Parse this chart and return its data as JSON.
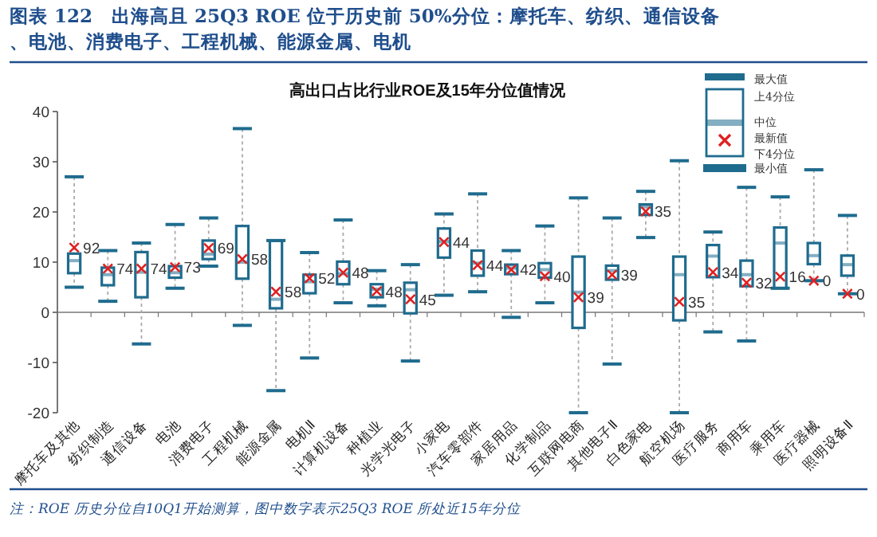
{
  "chart_data": {
    "type": "box",
    "title": "图表 122　出海高且 25Q3 ROE 位于历史前 50%分位：摩托车、纺织、通信设备、电池、消费电子、工程机械、能源金属、电机",
    "subtitle": "高出口占比行业ROE及15年分位值情况",
    "categories": [
      "摩托车及其他",
      "纺织制造",
      "通信设备",
      "电池",
      "消费电子",
      "工程机械",
      "能源金属",
      "电机Ⅱ",
      "计算机设备",
      "种植业",
      "光学光电子",
      "小家电",
      "汽车零部件",
      "家居用品",
      "化学制品",
      "互联网电商",
      "其他电子Ⅱ",
      "白色家电",
      "航空机场",
      "医疗服务",
      "商用车",
      "乘用车",
      "医疗器械",
      "照明设备Ⅱ"
    ],
    "ylim": [
      -20,
      40
    ],
    "yticks": [
      -20,
      -10,
      0,
      10,
      20,
      30,
      40
    ],
    "legend": "top right",
    "series": [
      {
        "type": "box",
        "color": "#1f6b8e",
        "boxes": [
          {
            "low": 5.0,
            "q1": 7.8,
            "median": 10.3,
            "q3": 11.7,
            "high": 27.0
          },
          {
            "low": 2.2,
            "q1": 5.4,
            "median": 7.5,
            "q3": 8.9,
            "high": 12.3
          },
          {
            "low": -6.3,
            "q1": 3.0,
            "median": 8.0,
            "q3": 12.0,
            "high": 13.8
          },
          {
            "low": 4.8,
            "q1": 6.9,
            "median": 7.9,
            "q3": 9.2,
            "high": 17.5
          },
          {
            "low": 9.2,
            "q1": 10.6,
            "median": 11.6,
            "q3": 14.3,
            "high": 18.8
          },
          {
            "low": -2.6,
            "q1": 6.7,
            "median": 10.0,
            "q3": 17.2,
            "high": 36.6
          },
          {
            "low": -15.6,
            "q1": 0.8,
            "median": 2.6,
            "q3": 14.3,
            "high": 14.3
          },
          {
            "low": -9.1,
            "q1": 3.8,
            "median": 6.1,
            "q3": 7.5,
            "high": 11.9
          },
          {
            "low": 1.9,
            "q1": 5.6,
            "median": 7.7,
            "q3": 10.1,
            "high": 18.4
          },
          {
            "low": 1.3,
            "q1": 3.0,
            "median": 4.6,
            "q3": 5.6,
            "high": 8.3
          },
          {
            "low": -9.7,
            "q1": -0.2,
            "median": 4.5,
            "q3": 5.9,
            "high": 9.5
          },
          {
            "low": 3.4,
            "q1": 10.9,
            "median": 14.1,
            "q3": 16.7,
            "high": 19.6
          },
          {
            "low": 4.1,
            "q1": 7.3,
            "median": 9.8,
            "q3": 12.3,
            "high": 23.6
          },
          {
            "low": -1.0,
            "q1": 7.6,
            "median": 8.8,
            "q3": 9.5,
            "high": 12.3
          },
          {
            "low": 1.9,
            "q1": 6.9,
            "median": 8.5,
            "q3": 9.8,
            "high": 17.2
          },
          {
            "low": -20,
            "q1": -3.1,
            "median": 4.0,
            "q3": 11.1,
            "high": 22.8
          },
          {
            "low": -10.3,
            "q1": 6.5,
            "median": 8.3,
            "q3": 9.3,
            "high": 18.8
          },
          {
            "low": 14.9,
            "q1": 19.4,
            "median": 21.0,
            "q3": 21.5,
            "high": 24.1
          },
          {
            "low": -20,
            "q1": -1.6,
            "median": 7.5,
            "q3": 11.1,
            "high": 30.2
          },
          {
            "low": -3.9,
            "q1": 7.0,
            "median": 11.2,
            "q3": 13.4,
            "high": 16.0
          },
          {
            "low": -5.7,
            "q1": 5.2,
            "median": 7.5,
            "q3": 10.3,
            "high": 24.9
          },
          {
            "low": 4.8,
            "q1": 4.8,
            "median": 13.8,
            "q3": 16.9,
            "high": 23.0
          },
          {
            "low": 6.3,
            "q1": 9.6,
            "median": 11.3,
            "q3": 13.8,
            "high": 28.4
          },
          {
            "low": 3.7,
            "q1": 7.3,
            "median": 9.5,
            "q3": 11.3,
            "high": 19.3
          }
        ]
      },
      {
        "type": "scatter",
        "name": "最新值",
        "color": "#e02020",
        "marker": "cross",
        "x": [
          "摩托车及其他",
          "纺织制造",
          "通信设备",
          "电池",
          "消费电子",
          "工程机械",
          "能源金属",
          "电机Ⅱ",
          "计算机设备",
          "种植业",
          "光学光电子",
          "小家电",
          "汽车零部件",
          "家居用品",
          "化学制品",
          "互联网电商",
          "其他电子Ⅱ",
          "白色家电",
          "航空机场",
          "医疗服务",
          "商用车",
          "乘用车",
          "医疗器械",
          "照明设备Ⅱ"
        ],
        "values": [
          12.9,
          8.7,
          8.7,
          9.0,
          12.8,
          10.6,
          4.1,
          6.8,
          7.9,
          4.2,
          2.6,
          14.0,
          9.4,
          8.5,
          7.2,
          3.0,
          7.5,
          20.1,
          2.1,
          8.0,
          5.9,
          7.1,
          6.3,
          3.7
        ]
      }
    ],
    "annotations": [
      "注：ROE 历史分位自10Q1开始测算，图中数字表示25Q3 ROE 所处近15年分位",
      "最大值",
      "上4分位",
      "中位",
      "下4分位",
      "最小值",
      {
        "text": "92",
        "x": "摩托车及其他",
        "y": 12.9
      },
      {
        "text": "74",
        "x": "纺织制造",
        "y": 8.7
      },
      {
        "text": "74",
        "x": "通信设备",
        "y": 8.7
      },
      {
        "text": "73",
        "x": "电池",
        "y": 9.0
      },
      {
        "text": "69",
        "x": "消费电子",
        "y": 12.8
      },
      {
        "text": "58",
        "x": "工程机械",
        "y": 10.6
      },
      {
        "text": "58",
        "x": "能源金属",
        "y": 4.1
      },
      {
        "text": "52",
        "x": "电机Ⅱ",
        "y": 6.8
      },
      {
        "text": "48",
        "x": "计算机设备",
        "y": 7.9
      },
      {
        "text": "48",
        "x": "种植业",
        "y": 4.2
      },
      {
        "text": "45",
        "x": "光学光电子",
        "y": 2.6
      },
      {
        "text": "44",
        "x": "小家电",
        "y": 14.0
      },
      {
        "text": "44",
        "x": "汽车零部件",
        "y": 9.4
      },
      {
        "text": "42",
        "x": "家居用品",
        "y": 8.5
      },
      {
        "text": "40",
        "x": "化学制品",
        "y": 7.2
      },
      {
        "text": "39",
        "x": "互联网电商",
        "y": 3.0
      },
      {
        "text": "39",
        "x": "其他电子Ⅱ",
        "y": 7.5
      },
      {
        "text": "35",
        "x": "白色家电",
        "y": 20.1
      },
      {
        "text": "35",
        "x": "航空机场",
        "y": 2.1
      },
      {
        "text": "34",
        "x": "医疗服务",
        "y": 8.0
      },
      {
        "text": "32",
        "x": "商用车",
        "y": 5.9
      },
      {
        "text": "16",
        "x": "乘用车",
        "y": 7.1
      },
      {
        "text": "0",
        "x": "医疗器械",
        "y": 6.3
      },
      {
        "text": "0",
        "x": "照明设备Ⅱ",
        "y": 3.7
      }
    ]
  }
}
